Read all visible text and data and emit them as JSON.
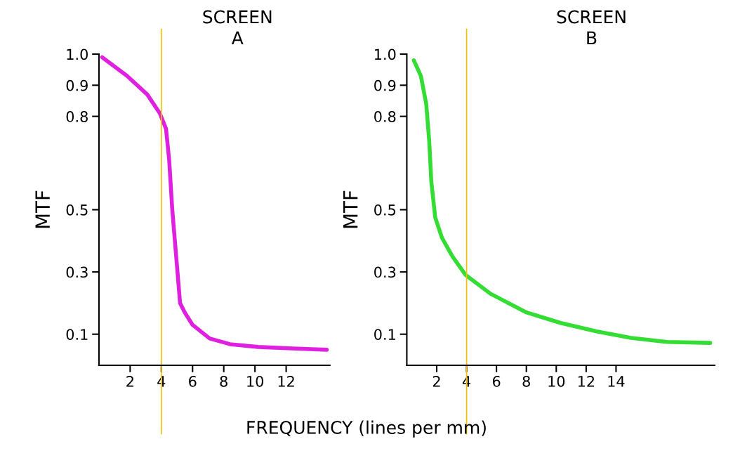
{
  "chart_data": [
    {
      "type": "line",
      "title": "SCREEN\nA",
      "ylabel": "MTF",
      "annotations": [
        "FREQUENCY (lines per mm)"
      ],
      "series": [
        {
          "color": "#e020e0",
          "x": [
            0.2,
            1.8,
            3.1,
            3.9,
            4.3,
            4.5,
            4.7,
            5.0,
            5.2,
            5.5,
            6.0,
            7.1,
            8.4,
            10.2,
            12.4,
            14.6
          ],
          "values": [
            0.99,
            0.93,
            0.87,
            0.81,
            0.76,
            0.66,
            0.5,
            0.32,
            0.2,
            0.17,
            0.13,
            0.086,
            0.068,
            0.059,
            0.054,
            0.05
          ]
        }
      ],
      "xlim": [
        0,
        14.8
      ],
      "xticks": [
        2,
        4,
        6,
        8,
        10,
        12
      ],
      "ylim": [
        0,
        1.0
      ],
      "yticks": [
        0.1,
        0.3,
        0.5,
        0.8,
        0.9,
        {
          "value": 1.0,
          "label": "1.0"
        }
      ],
      "ref_lines": [
        {
          "axis": "x",
          "value": 4,
          "color": "#f5c000"
        }
      ],
      "grid": false,
      "legend": false
    },
    {
      "type": "line",
      "title": "SCREEN\nB",
      "ylabel": "MTF",
      "series": [
        {
          "color": "#33dd33",
          "x": [
            0.47,
            0.94,
            1.3,
            1.5,
            1.64,
            1.9,
            2.35,
            3.05,
            3.94,
            5.6,
            8.0,
            10.3,
            12.7,
            15.0,
            17.4,
            20.3
          ],
          "values": [
            0.98,
            0.93,
            0.84,
            0.72,
            0.59,
            0.475,
            0.41,
            0.35,
            0.29,
            0.23,
            0.17,
            0.136,
            0.109,
            0.088,
            0.075,
            0.072
          ]
        }
      ],
      "xlim": [
        0,
        20.6
      ],
      "xticks": [
        2,
        4,
        6,
        8,
        10,
        12,
        14
      ],
      "ylim": [
        0,
        1.0
      ],
      "yticks": [
        0.1,
        0.3,
        0.5,
        0.8,
        0.9,
        {
          "value": 1.0,
          "label": "1.0"
        }
      ],
      "ref_lines": [
        {
          "axis": "x",
          "value": 4,
          "color": "#f5c000"
        }
      ],
      "grid": false,
      "legend": false
    }
  ]
}
